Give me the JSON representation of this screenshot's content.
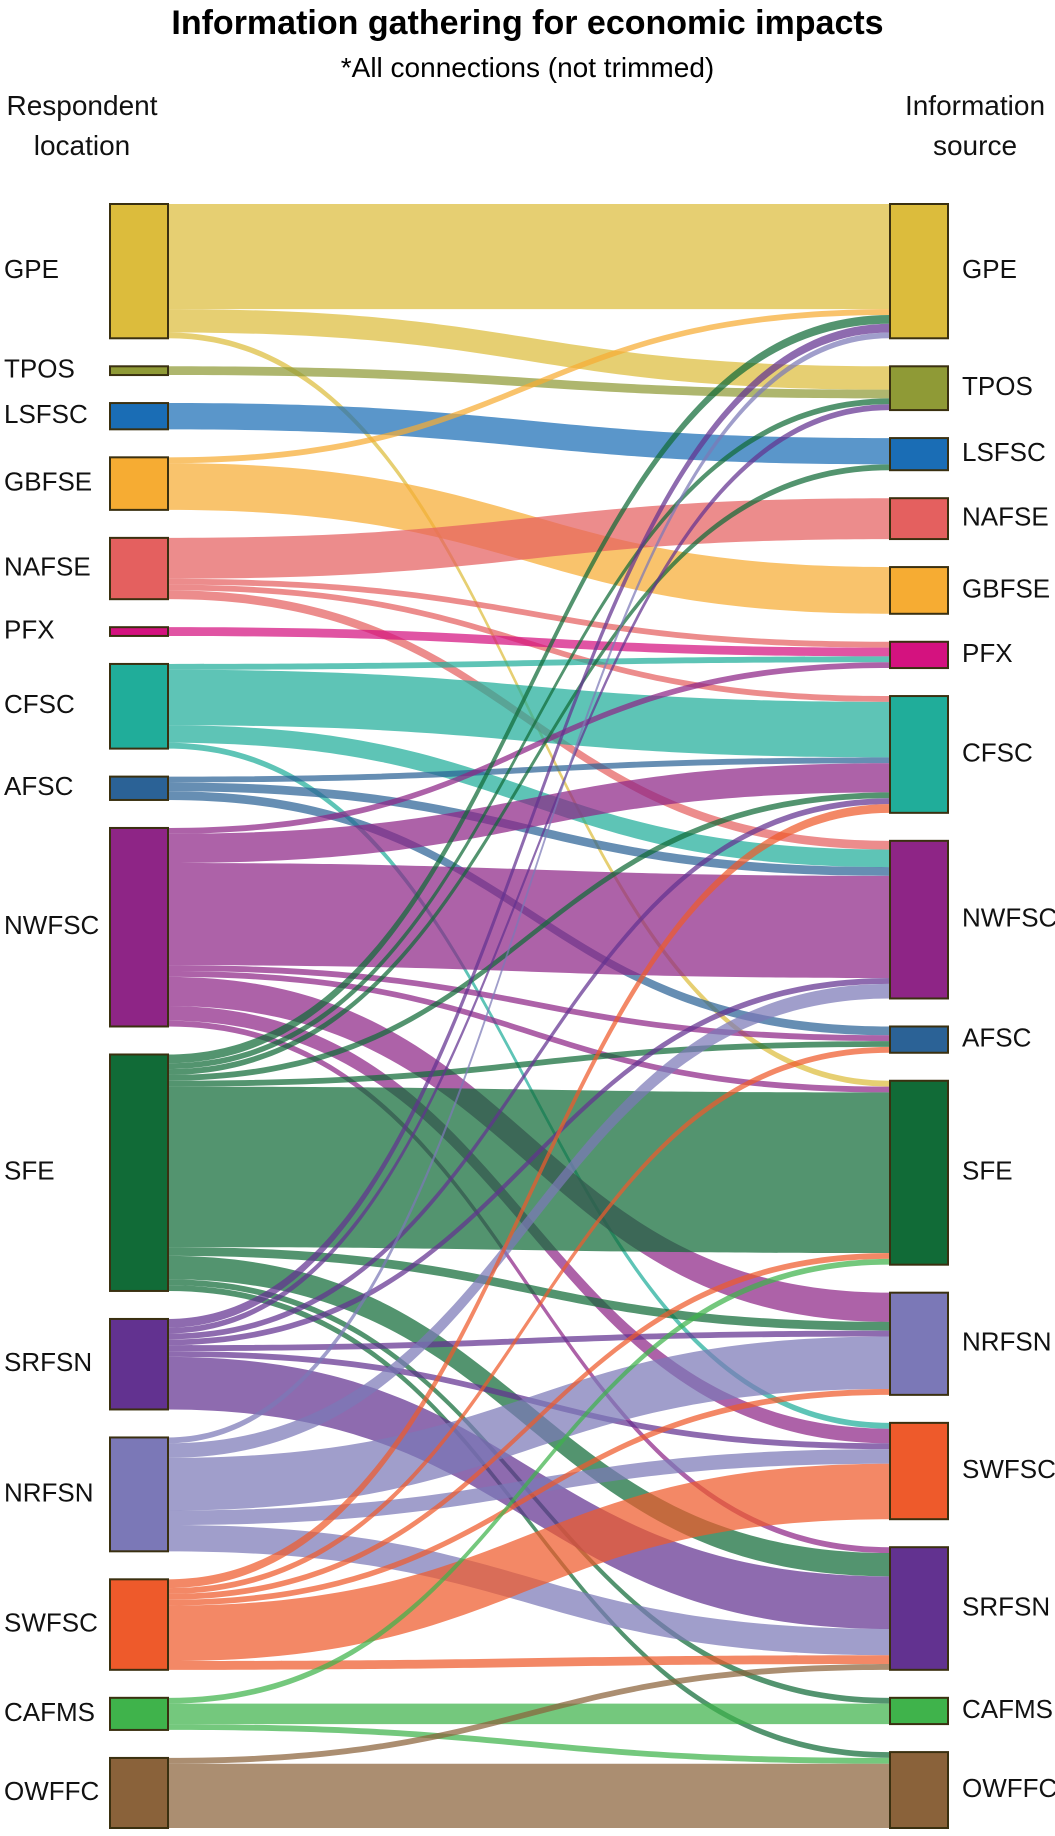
{
  "chart_data": {
    "type": "sankey",
    "title": "Information gathering for economic impacts",
    "subtitle": "*All connections (not trimmed)",
    "left_header": "Respondent location",
    "right_header": "Information source",
    "left_nodes": [
      {
        "name": "GPE",
        "color": "#dcbc3c"
      },
      {
        "name": "TPOS",
        "color": "#8f9a36"
      },
      {
        "name": "LSFSC",
        "color": "#1a6db5"
      },
      {
        "name": "GBFSE",
        "color": "#f6ac33"
      },
      {
        "name": "NAFSE",
        "color": "#e4605f"
      },
      {
        "name": "PFX",
        "color": "#d4127f"
      },
      {
        "name": "CFSC",
        "color": "#20ad9a"
      },
      {
        "name": "AFSC",
        "color": "#2b6296"
      },
      {
        "name": "NWFSC",
        "color": "#8e2586"
      },
      {
        "name": "SFE",
        "color": "#116b37"
      },
      {
        "name": "SRFSN",
        "color": "#623290"
      },
      {
        "name": "NRFSN",
        "color": "#7b78b7"
      },
      {
        "name": "SWFSC",
        "color": "#ee5a2b"
      },
      {
        "name": "CAFMS",
        "color": "#3fb34b"
      },
      {
        "name": "OWFFC",
        "color": "#8a623a"
      }
    ],
    "right_nodes": [
      {
        "name": "GPE",
        "color": "#dcbc3c"
      },
      {
        "name": "TPOS",
        "color": "#8f9a36"
      },
      {
        "name": "LSFSC",
        "color": "#1a6db5"
      },
      {
        "name": "NAFSE",
        "color": "#e4605f"
      },
      {
        "name": "GBFSE",
        "color": "#f6ac33"
      },
      {
        "name": "PFX",
        "color": "#d4127f"
      },
      {
        "name": "CFSC",
        "color": "#20ad9a"
      },
      {
        "name": "NWFSC",
        "color": "#8e2586"
      },
      {
        "name": "AFSC",
        "color": "#2b6296"
      },
      {
        "name": "SFE",
        "color": "#116b37"
      },
      {
        "name": "NRFSN",
        "color": "#7b78b7"
      },
      {
        "name": "SWFSC",
        "color": "#ee5a2b"
      },
      {
        "name": "SRFSN",
        "color": "#623290"
      },
      {
        "name": "CAFMS",
        "color": "#3fb34b"
      },
      {
        "name": "OWFFC",
        "color": "#8a623a"
      }
    ],
    "links": [
      {
        "source": 0,
        "target": 0,
        "value": 72
      },
      {
        "source": 0,
        "target": 1,
        "value": 16
      },
      {
        "source": 0,
        "target": 9,
        "value": 4
      },
      {
        "source": 1,
        "target": 1,
        "value": 6
      },
      {
        "source": 2,
        "target": 2,
        "value": 18
      },
      {
        "source": 3,
        "target": 0,
        "value": 4
      },
      {
        "source": 3,
        "target": 4,
        "value": 32
      },
      {
        "source": 4,
        "target": 3,
        "value": 28
      },
      {
        "source": 4,
        "target": 5,
        "value": 4
      },
      {
        "source": 4,
        "target": 6,
        "value": 4
      },
      {
        "source": 4,
        "target": 7,
        "value": 6
      },
      {
        "source": 5,
        "target": 5,
        "value": 6
      },
      {
        "source": 6,
        "target": 5,
        "value": 4
      },
      {
        "source": 6,
        "target": 6,
        "value": 38
      },
      {
        "source": 6,
        "target": 7,
        "value": 12
      },
      {
        "source": 6,
        "target": 11,
        "value": 4
      },
      {
        "source": 7,
        "target": 6,
        "value": 4
      },
      {
        "source": 7,
        "target": 7,
        "value": 6
      },
      {
        "source": 7,
        "target": 8,
        "value": 6
      },
      {
        "source": 8,
        "target": 5,
        "value": 4
      },
      {
        "source": 8,
        "target": 6,
        "value": 20
      },
      {
        "source": 8,
        "target": 7,
        "value": 70
      },
      {
        "source": 8,
        "target": 8,
        "value": 4
      },
      {
        "source": 8,
        "target": 9,
        "value": 4
      },
      {
        "source": 8,
        "target": 10,
        "value": 20
      },
      {
        "source": 8,
        "target": 11,
        "value": 10
      },
      {
        "source": 8,
        "target": 12,
        "value": 4
      },
      {
        "source": 9,
        "target": 0,
        "value": 6
      },
      {
        "source": 9,
        "target": 1,
        "value": 4
      },
      {
        "source": 9,
        "target": 2,
        "value": 4
      },
      {
        "source": 9,
        "target": 6,
        "value": 4
      },
      {
        "source": 9,
        "target": 8,
        "value": 4
      },
      {
        "source": 9,
        "target": 9,
        "value": 110
      },
      {
        "source": 9,
        "target": 10,
        "value": 6
      },
      {
        "source": 9,
        "target": 12,
        "value": 16
      },
      {
        "source": 9,
        "target": 13,
        "value": 4
      },
      {
        "source": 9,
        "target": 14,
        "value": 4
      },
      {
        "source": 10,
        "target": 0,
        "value": 6
      },
      {
        "source": 10,
        "target": 1,
        "value": 4
      },
      {
        "source": 10,
        "target": 6,
        "value": 4
      },
      {
        "source": 10,
        "target": 7,
        "value": 4
      },
      {
        "source": 10,
        "target": 10,
        "value": 4
      },
      {
        "source": 10,
        "target": 11,
        "value": 4
      },
      {
        "source": 10,
        "target": 12,
        "value": 36
      },
      {
        "source": 11,
        "target": 0,
        "value": 4
      },
      {
        "source": 11,
        "target": 7,
        "value": 10
      },
      {
        "source": 11,
        "target": 10,
        "value": 36
      },
      {
        "source": 11,
        "target": 11,
        "value": 10
      },
      {
        "source": 11,
        "target": 12,
        "value": 18
      },
      {
        "source": 12,
        "target": 6,
        "value": 6
      },
      {
        "source": 12,
        "target": 8,
        "value": 4
      },
      {
        "source": 12,
        "target": 9,
        "value": 4
      },
      {
        "source": 12,
        "target": 10,
        "value": 4
      },
      {
        "source": 12,
        "target": 11,
        "value": 38
      },
      {
        "source": 12,
        "target": 12,
        "value": 6
      },
      {
        "source": 13,
        "target": 9,
        "value": 4
      },
      {
        "source": 13,
        "target": 13,
        "value": 14
      },
      {
        "source": 13,
        "target": 14,
        "value": 4
      },
      {
        "source": 14,
        "target": 12,
        "value": 4
      },
      {
        "source": 14,
        "target": 14,
        "value": 44
      }
    ]
  }
}
